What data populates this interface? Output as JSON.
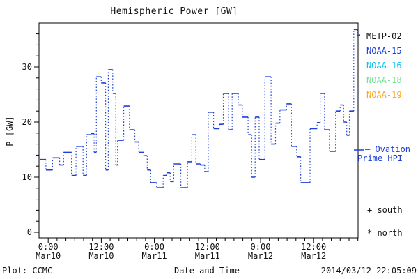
{
  "header": {
    "title": "Hemispheric Power [GW]"
  },
  "y_axis": {
    "label": "P [GW]",
    "ticks": [
      0,
      10,
      20,
      30
    ],
    "minor_step": 2
  },
  "x_axis": {
    "label": "Date and Time",
    "ticks": [
      {
        "time": "0:00",
        "date": "Mar10"
      },
      {
        "time": "12:00",
        "date": "Mar10"
      },
      {
        "time": "0:00",
        "date": "Mar11"
      },
      {
        "time": "12:00",
        "date": "Mar11"
      },
      {
        "time": "0:00",
        "date": "Mar12"
      },
      {
        "time": "12:00",
        "date": "Mar12"
      }
    ],
    "minor_step_hours": 2
  },
  "legend": {
    "satellites": [
      {
        "label": "METP-02",
        "color": "#111111"
      },
      {
        "label": "NOAA-15",
        "color": "#1e40d8"
      },
      {
        "label": "NOAA-16",
        "color": "#00c4f0"
      },
      {
        "label": "NOAA-18",
        "color": "#72e296"
      },
      {
        "label": "NOAA-19",
        "color": "#ffa51e"
      }
    ],
    "ovation": {
      "line1": "– Ovation",
      "line2": "Prime HPI",
      "color": "#1e40d8"
    },
    "markers": [
      {
        "glyph_label": "+ south"
      },
      {
        "glyph_label": "* north"
      }
    ]
  },
  "footer": {
    "plot_credit": "Plot: CCMC",
    "timestamp": "2014/03/12 22:05:09"
  },
  "colors": {
    "curve": "#1e40d8",
    "axis": "#000000"
  },
  "chart_data": {
    "type": "line",
    "style": "step-post, solid horizontal treads, dotted vertical risers",
    "title": "Hemispheric Power [GW]",
    "xlabel": "Date and Time",
    "ylabel": "P [GW]",
    "ylim": [
      0,
      38
    ],
    "yticks": [
      0,
      10,
      20,
      30
    ],
    "x_span_hours": 72,
    "x_major_tick_hours": [
      1.92,
      13.92,
      25.92,
      37.92,
      49.92,
      61.92
    ],
    "x_tick_labels": [
      "0:00 Mar10",
      "12:00 Mar10",
      "0:00 Mar11",
      "12:00 Mar11",
      "0:00 Mar12",
      "12:00 Mar12"
    ],
    "end_timestamp": "2014/03/12 22:05:09",
    "grid": false,
    "legend_position": "right-outside",
    "series": [
      {
        "name": "Ovation Prime HPI",
        "color": "#1e40d8",
        "x_unit": "hours_from_left_edge_of_plot",
        "y_unit": "GW",
        "points": [
          [
            0.0,
            13.2
          ],
          [
            1.4,
            11.3
          ],
          [
            2.9,
            13.5
          ],
          [
            4.5,
            12.2
          ],
          [
            5.4,
            14.5
          ],
          [
            7.2,
            10.3
          ],
          [
            8.2,
            15.6
          ],
          [
            9.8,
            10.3
          ],
          [
            10.6,
            17.7
          ],
          [
            11.6,
            17.9
          ],
          [
            12.3,
            14.5
          ],
          [
            12.8,
            28.2
          ],
          [
            13.9,
            27.1
          ],
          [
            14.9,
            11.3
          ],
          [
            15.5,
            29.5
          ],
          [
            16.5,
            25.2
          ],
          [
            17.2,
            12.2
          ],
          [
            17.6,
            16.7
          ],
          [
            19.0,
            22.9
          ],
          [
            20.3,
            18.6
          ],
          [
            21.5,
            16.4
          ],
          [
            22.4,
            14.5
          ],
          [
            23.5,
            13.9
          ],
          [
            24.3,
            11.3
          ],
          [
            25.1,
            9.0
          ],
          [
            26.4,
            8.1
          ],
          [
            27.9,
            10.3
          ],
          [
            28.7,
            10.8
          ],
          [
            29.5,
            9.2
          ],
          [
            30.3,
            12.4
          ],
          [
            31.9,
            8.1
          ],
          [
            33.4,
            12.8
          ],
          [
            34.4,
            17.7
          ],
          [
            35.3,
            12.4
          ],
          [
            36.3,
            12.2
          ],
          [
            37.3,
            11.0
          ],
          [
            38.1,
            21.8
          ],
          [
            39.3,
            18.8
          ],
          [
            40.6,
            19.6
          ],
          [
            41.5,
            25.2
          ],
          [
            42.7,
            18.6
          ],
          [
            43.5,
            25.2
          ],
          [
            44.9,
            23.1
          ],
          [
            45.8,
            20.9
          ],
          [
            47.1,
            17.7
          ],
          [
            47.9,
            10.0
          ],
          [
            48.7,
            20.9
          ],
          [
            49.6,
            13.2
          ],
          [
            50.9,
            28.2
          ],
          [
            52.3,
            16.0
          ],
          [
            53.3,
            19.8
          ],
          [
            54.3,
            22.2
          ],
          [
            55.8,
            23.3
          ],
          [
            56.9,
            15.6
          ],
          [
            58.1,
            13.7
          ],
          [
            59.0,
            9.0
          ],
          [
            61.1,
            18.8
          ],
          [
            62.7,
            19.9
          ],
          [
            63.4,
            25.2
          ],
          [
            64.4,
            18.6
          ],
          [
            65.5,
            14.7
          ],
          [
            66.9,
            22.0
          ],
          [
            67.9,
            23.1
          ],
          [
            68.7,
            20.0
          ],
          [
            69.4,
            17.6
          ],
          [
            70.0,
            22.0
          ],
          [
            71.0,
            36.8
          ],
          [
            71.8,
            35.8
          ],
          [
            72.3,
            35.8
          ]
        ]
      }
    ]
  }
}
